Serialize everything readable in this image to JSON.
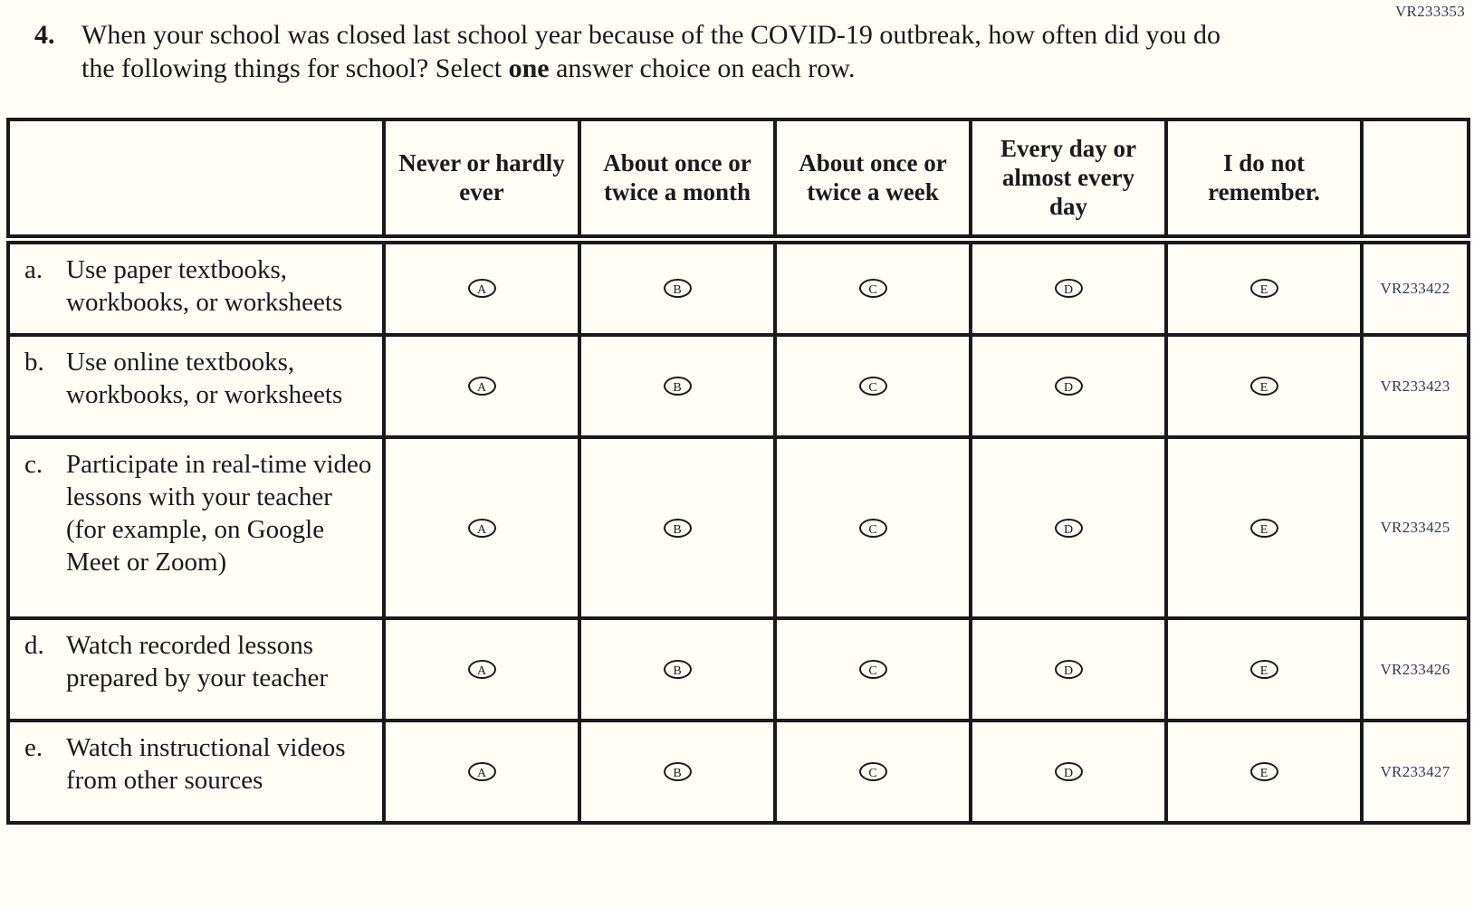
{
  "page_code": "VR233353",
  "colors": {
    "ink": "#1a1a1a",
    "paper": "#fffdf6",
    "code_ink": "#2e3a5c"
  },
  "question": {
    "number": "4.",
    "text_before_bold": "When your school was closed last school year because of the COVID-19 outbreak, how often did you do the following things for school?  Select ",
    "bold_word": "one",
    "text_after_bold": " answer choice on each row."
  },
  "table": {
    "headers": [
      "Never or hardly ever",
      "About once or twice a month",
      "About once or twice a week",
      "Every day or almost every day",
      "I do not remember."
    ],
    "options": [
      "A",
      "B",
      "C",
      "D",
      "E"
    ],
    "rows": [
      {
        "letter": "a.",
        "text": "Use paper textbooks, workbooks, or worksheets",
        "code": "VR233422"
      },
      {
        "letter": "b.",
        "text": "Use online textbooks, workbooks, or worksheets",
        "code": "VR233423"
      },
      {
        "letter": "c.",
        "text": "Participate in real-time video lessons with your teacher (for example, on Google Meet or Zoom)",
        "code": "VR233425"
      },
      {
        "letter": "d.",
        "text": "Watch recorded lessons prepared by your teacher",
        "code": "VR233426"
      },
      {
        "letter": "e.",
        "text": "Watch instructional videos from other sources",
        "code": "VR233427"
      }
    ]
  }
}
